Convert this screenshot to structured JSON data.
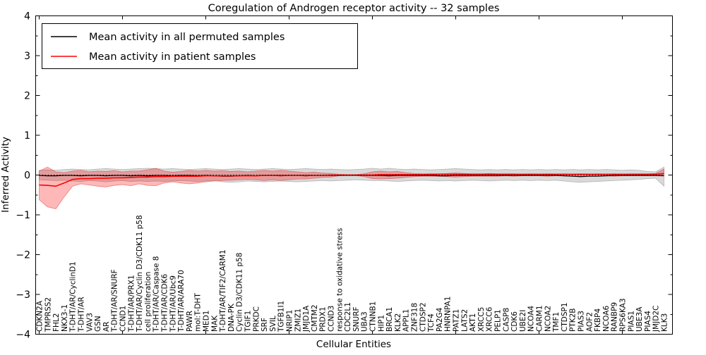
{
  "title": "Coregulation of Androgen receptor activity -- 32 samples",
  "xlabel": "Cellular Entities",
  "ylabel": "Inferred Activity",
  "legend": {
    "entries": [
      {
        "label": "Mean activity in all permuted samples",
        "color": "#000000"
      },
      {
        "label": "Mean activity in patient samples",
        "color": "#ff0000"
      }
    ]
  },
  "colors": {
    "permuted_line": "#000000",
    "patient_line": "#ff0000",
    "permuted_band_fill": "rgba(128,128,128,0.30)",
    "permuted_band_edge": "rgba(110,110,110,0.45)",
    "patient_band_fill": "rgba(255,0,0,0.28)",
    "patient_band_edge": "rgba(215,40,40,0.50)",
    "zero_line": "#000000",
    "frame": "#000000"
  },
  "chart_data": {
    "type": "line",
    "title": "Coregulation of Androgen receptor activity -- 32 samples",
    "xlabel": "Cellular Entities",
    "ylabel": "Inferred Activity",
    "ylim": [
      -4,
      4
    ],
    "ytick_major": [
      4,
      3,
      2,
      1,
      0,
      -1,
      -2,
      -3,
      -4
    ],
    "ytick_labels": [
      "4",
      "3",
      "2",
      "1",
      "0",
      "−1",
      "−2",
      "−3",
      "−4"
    ],
    "xtick_major_every": 10,
    "grid": false,
    "legend_position": "upper left",
    "categories": [
      "CDKN2A",
      "TMPRSS2",
      "FHL2",
      "NKX3-1",
      "T-DHT/AR/CyclinD1",
      "T-DHT/AR",
      "VAV3",
      "GSN",
      "AR",
      "T-DHT/AR/SNURF",
      "CCND1",
      "T-DHT/AR/PRX1",
      "T-DHT/AR/Cyclin D3/CDK11 p58",
      "cell proliferation",
      "T-DHT/AR/Caspase 8",
      "T-DHT/AR/CDK6",
      "T-DHT/AR/Ubc9",
      "T-DHT/AR/ARA70",
      "PAWR",
      "mol:T-DHT",
      "MED1",
      "MAK",
      "T-DHT/AR/TIF2/CARM1",
      "DNA-PK",
      "Cyclin D3/CDK11 p58",
      "TGIF1",
      "PRKDC",
      "SRF",
      "SVIL",
      "TGFB1I1",
      "NRIP1",
      "ZMIZ1",
      "JMJD1A",
      "CMTM2",
      "PRDX1",
      "CCND3",
      "response to oxidative stress",
      "CDC2L1",
      "SNURF",
      "UBA3",
      "CTNNB1",
      "HIP1",
      "BRCA1",
      "KLK2",
      "APPL1",
      "ZNF318",
      "CTDSP2",
      "TCF4",
      "PA2G4",
      "HNRNPA1",
      "PATZ1",
      "LATS2",
      "AKT1",
      "XRCC5",
      "XRCC6",
      "PELP1",
      "CASP8",
      "CDK6",
      "UBE2I",
      "NCOA4",
      "CARM1",
      "NCOA2",
      "TMF1",
      "CTDSP1",
      "PTK2B",
      "PIAS3",
      "AOF2",
      "FKBP4",
      "NCOA6",
      "RANBP9",
      "RPS6KA3",
      "PIAS1",
      "UBE3A",
      "PIAS4",
      "JMJD2C",
      "KLK3"
    ],
    "series": [
      {
        "name": "Mean activity in all permuted samples",
        "values": [
          -0.01,
          -0.02,
          -0.02,
          -0.01,
          -0.01,
          -0.02,
          -0.01,
          -0.01,
          -0.02,
          -0.01,
          -0.01,
          -0.02,
          -0.01,
          -0.02,
          -0.01,
          -0.01,
          -0.02,
          -0.01,
          -0.01,
          -0.02,
          -0.01,
          -0.02,
          -0.03,
          -0.03,
          -0.02,
          -0.01,
          -0.02,
          -0.01,
          -0.01,
          -0.02,
          -0.01,
          -0.01,
          -0.02,
          -0.01,
          -0.01,
          -0.01,
          -0.01,
          -0.01,
          -0.01,
          -0.01,
          -0.01,
          -0.01,
          -0.02,
          -0.01,
          -0.01,
          -0.01,
          -0.01,
          -0.01,
          -0.02,
          -0.02,
          -0.01,
          -0.01,
          -0.01,
          -0.01,
          -0.01,
          -0.01,
          -0.01,
          -0.01,
          -0.01,
          -0.01,
          -0.01,
          -0.01,
          -0.01,
          -0.02,
          -0.03,
          -0.04,
          -0.03,
          -0.03,
          -0.02,
          -0.01,
          -0.01,
          -0.01,
          -0.01,
          -0.01,
          -0.01,
          -0.01
        ]
      },
      {
        "name": "Mean activity in patient samples",
        "values": [
          -0.25,
          -0.26,
          -0.28,
          -0.2,
          -0.11,
          -0.09,
          -0.09,
          -0.08,
          -0.08,
          -0.07,
          -0.07,
          -0.06,
          -0.05,
          -0.05,
          -0.04,
          -0.04,
          -0.03,
          -0.03,
          -0.03,
          -0.03,
          -0.02,
          -0.02,
          -0.02,
          -0.02,
          -0.02,
          -0.02,
          -0.02,
          -0.01,
          -0.01,
          -0.01,
          -0.01,
          -0.01,
          -0.01,
          -0.01,
          -0.01,
          0.0,
          0.0,
          0.0,
          0.0,
          0.0,
          0.0,
          0.01,
          0.01,
          0.01,
          0.01,
          0.01,
          0.01,
          0.01,
          0.02,
          0.02,
          0.02,
          0.02,
          0.02,
          0.02,
          0.02,
          0.02,
          0.02,
          0.02,
          0.02,
          0.02,
          0.02,
          0.02,
          0.02,
          0.02,
          0.02,
          0.02,
          0.02,
          0.02,
          0.02,
          0.02,
          0.02,
          0.02,
          0.02,
          0.02,
          0.02,
          0.04
        ]
      }
    ],
    "bands": [
      {
        "name": "permuted-std-band",
        "upper": [
          0.12,
          0.13,
          0.12,
          0.14,
          0.15,
          0.14,
          0.13,
          0.15,
          0.16,
          0.15,
          0.14,
          0.15,
          0.16,
          0.17,
          0.16,
          0.15,
          0.16,
          0.15,
          0.14,
          0.15,
          0.16,
          0.15,
          0.14,
          0.15,
          0.16,
          0.15,
          0.14,
          0.15,
          0.16,
          0.15,
          0.14,
          0.15,
          0.16,
          0.15,
          0.14,
          0.15,
          0.14,
          0.13,
          0.14,
          0.15,
          0.17,
          0.15,
          0.17,
          0.15,
          0.14,
          0.15,
          0.14,
          0.13,
          0.14,
          0.15,
          0.16,
          0.15,
          0.14,
          0.13,
          0.14,
          0.13,
          0.14,
          0.13,
          0.14,
          0.13,
          0.14,
          0.13,
          0.14,
          0.13,
          0.14,
          0.13,
          0.14,
          0.13,
          0.14,
          0.13,
          0.12,
          0.13,
          0.12,
          0.09,
          0.08,
          0.2
        ],
        "lower": [
          -0.12,
          -0.13,
          -0.14,
          -0.13,
          -0.15,
          -0.16,
          -0.14,
          -0.15,
          -0.17,
          -0.15,
          -0.14,
          -0.16,
          -0.15,
          -0.16,
          -0.15,
          -0.16,
          -0.15,
          -0.14,
          -0.15,
          -0.16,
          -0.15,
          -0.14,
          -0.17,
          -0.18,
          -0.17,
          -0.15,
          -0.16,
          -0.17,
          -0.16,
          -0.15,
          -0.16,
          -0.17,
          -0.16,
          -0.15,
          -0.14,
          -0.15,
          -0.14,
          -0.13,
          -0.12,
          -0.13,
          -0.14,
          -0.14,
          -0.15,
          -0.16,
          -0.15,
          -0.14,
          -0.13,
          -0.14,
          -0.15,
          -0.14,
          -0.15,
          -0.14,
          -0.13,
          -0.14,
          -0.15,
          -0.14,
          -0.13,
          -0.14,
          -0.13,
          -0.14,
          -0.13,
          -0.14,
          -0.13,
          -0.15,
          -0.17,
          -0.18,
          -0.17,
          -0.16,
          -0.15,
          -0.14,
          -0.13,
          -0.12,
          -0.11,
          -0.09,
          -0.08,
          -0.28
        ]
      },
      {
        "name": "patient-std-band",
        "upper": [
          0.1,
          0.2,
          0.08,
          0.06,
          0.1,
          0.12,
          0.08,
          0.1,
          0.09,
          0.11,
          0.08,
          0.1,
          0.1,
          0.13,
          0.17,
          0.1,
          0.07,
          0.09,
          0.12,
          0.1,
          0.12,
          0.1,
          0.11,
          0.09,
          0.1,
          0.08,
          0.1,
          0.12,
          0.1,
          0.12,
          0.1,
          0.08,
          0.06,
          0.07,
          0.05,
          0.04,
          0.02,
          0.01,
          0.01,
          0.03,
          0.08,
          0.1,
          0.08,
          0.09,
          0.06,
          0.04,
          0.03,
          0.04,
          0.03,
          0.04,
          0.05,
          0.04,
          0.03,
          0.03,
          0.04,
          0.03,
          0.03,
          0.03,
          0.02,
          0.03,
          0.02,
          0.03,
          0.02,
          0.03,
          0.02,
          0.03,
          0.02,
          0.03,
          0.02,
          0.03,
          0.02,
          0.03,
          0.03,
          0.03,
          0.04,
          0.15
        ],
        "lower": [
          -0.62,
          -0.8,
          -0.85,
          -0.55,
          -0.28,
          -0.22,
          -0.25,
          -0.28,
          -0.3,
          -0.26,
          -0.24,
          -0.27,
          -0.22,
          -0.26,
          -0.27,
          -0.2,
          -0.17,
          -0.2,
          -0.22,
          -0.2,
          -0.17,
          -0.15,
          -0.14,
          -0.13,
          -0.12,
          -0.11,
          -0.12,
          -0.14,
          -0.12,
          -0.14,
          -0.12,
          -0.1,
          -0.1,
          -0.08,
          -0.06,
          -0.05,
          -0.02,
          -0.01,
          -0.01,
          -0.04,
          -0.09,
          -0.1,
          -0.09,
          -0.08,
          -0.06,
          -0.04,
          -0.03,
          -0.03,
          -0.03,
          -0.04,
          -0.05,
          -0.04,
          -0.03,
          -0.03,
          -0.03,
          -0.03,
          -0.02,
          -0.03,
          -0.02,
          -0.02,
          -0.02,
          -0.03,
          -0.02,
          -0.02,
          -0.02,
          -0.03,
          -0.02,
          -0.02,
          -0.02,
          -0.03,
          -0.02,
          -0.02,
          -0.02,
          -0.02,
          -0.02,
          -0.03
        ]
      }
    ]
  }
}
